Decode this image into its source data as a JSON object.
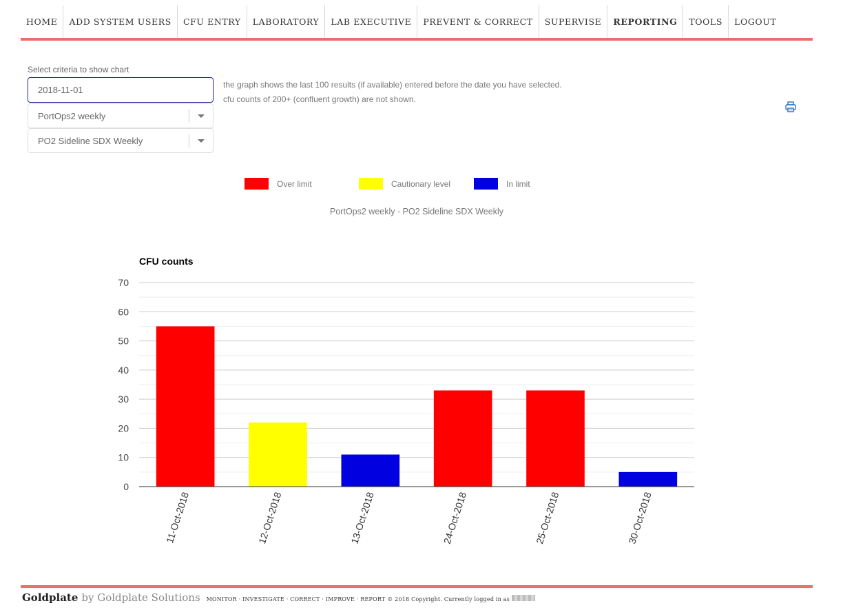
{
  "nav": {
    "items": [
      "HOME",
      "ADD SYSTEM USERS",
      "CFU ENTRY",
      "LABORATORY",
      "LAB EXECUTIVE",
      "PREVENT & CORRECT",
      "SUPERVISE",
      "REPORTING",
      "TOOLS",
      "LOGOUT"
    ],
    "active": "REPORTING"
  },
  "criteria": {
    "label": "Select criteria to show chart",
    "date_value": "2018-11-01",
    "select1_value": "PortOps2 weekly",
    "select2_value": "PO2 Sideline SDX Weekly"
  },
  "info": {
    "line1": "the graph shows the last 100 results (if available) entered before the date you have selected.",
    "line2": "cfu counts of 200+ (confluent growth) are not shown."
  },
  "icons": {
    "print": "print-icon",
    "dropdown": "chevron-down-icon"
  },
  "legend": [
    {
      "label": "Over limit",
      "color": "#ff0000"
    },
    {
      "label": "Cautionary level",
      "color": "#ffff00"
    },
    {
      "label": "In limit",
      "color": "#0000e0"
    }
  ],
  "chart_subtitle": "PortOps2 weekly - PO2 Sideline SDX Weekly",
  "chart_data": {
    "type": "bar",
    "title": "",
    "ylabel": "CFU counts",
    "xlabel": "",
    "categories": [
      "11-Oct-2018",
      "12-Oct-2018",
      "13-Oct-2018",
      "24-Oct-2018",
      "25-Oct-2018",
      "30-Oct-2018"
    ],
    "values": [
      55,
      22,
      11,
      33,
      33,
      5
    ],
    "bar_colors": [
      "#ff0000",
      "#ffff00",
      "#0000e0",
      "#ff0000",
      "#ff0000",
      "#0000e0"
    ],
    "ylim": [
      0,
      70
    ],
    "yticks": [
      0,
      10,
      20,
      30,
      40,
      50,
      60,
      70
    ],
    "grid": true,
    "legend": "top-center"
  },
  "footer": {
    "brand": "Goldplate",
    "by": "by Goldplate Solutions",
    "tagline": "MONITOR · INVESTIGATE · CORRECT · IMPROVE · REPORT © 2018 Copyright. Currently logged in as"
  }
}
